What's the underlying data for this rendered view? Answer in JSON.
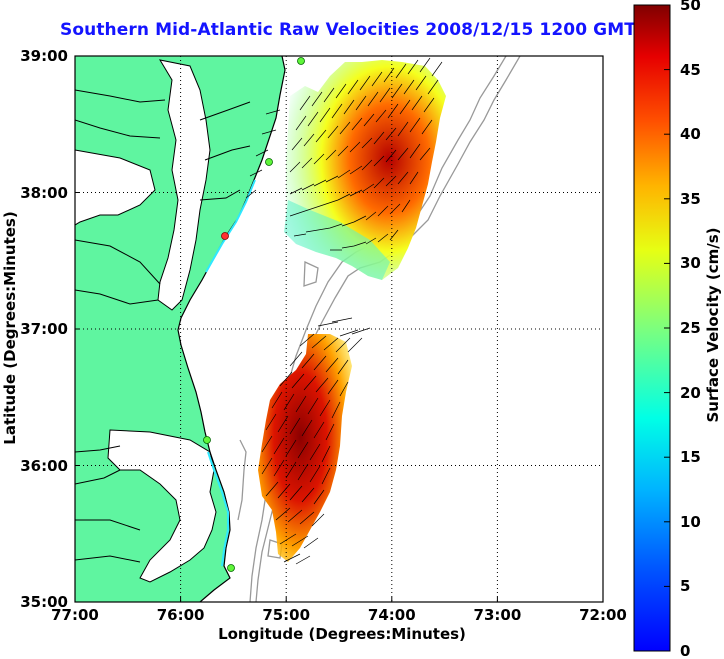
{
  "title": "Southern Mid-Atlantic Raw Velocities 2008/12/15 1200 GMT",
  "x_axis": {
    "label": "Longitude (Degrees:Minutes)",
    "ticks": [
      "77:00",
      "76:00",
      "75:00",
      "74:00",
      "73:00",
      "72:00"
    ]
  },
  "y_axis": {
    "label": "Latitude (Degrees:Minutes)",
    "ticks": [
      "39:00",
      "38:00",
      "37:00",
      "36:00",
      "35:00"
    ]
  },
  "colorbar": {
    "label": "Surface Velocity (cm/s)",
    "ticks": [
      "50",
      "45",
      "40",
      "35",
      "30",
      "25",
      "20",
      "15",
      "10",
      "5",
      "0"
    ],
    "range": [
      0,
      50
    ],
    "colormap": "jet"
  },
  "map": {
    "land_color": "#5ff5a0",
    "coast_color": "#000000",
    "bathymetry_color": "#9a9a9a",
    "grid": "dotted",
    "lon_range": [
      -77,
      -72
    ],
    "lat_range": [
      35,
      39
    ]
  }
}
